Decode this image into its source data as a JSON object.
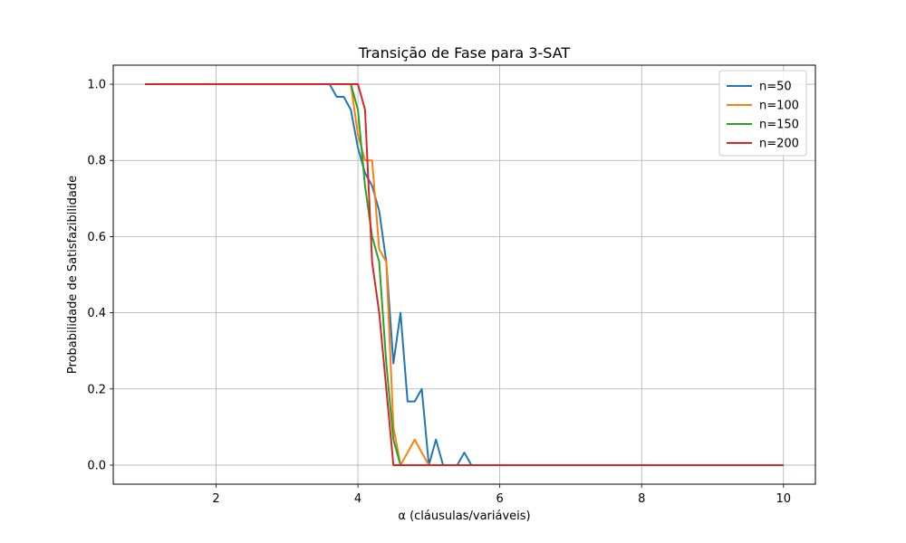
{
  "chart_data": {
    "type": "line",
    "title": "Transição de Fase para 3-SAT",
    "xlabel": "α (cláusulas/variáveis)",
    "ylabel": "Probabilidade de Satisfazibilidade",
    "xlim": [
      0.55,
      10.45
    ],
    "ylim": [
      -0.05,
      1.05
    ],
    "xticks": [
      2,
      4,
      6,
      8,
      10
    ],
    "yticks": [
      0.0,
      0.2,
      0.4,
      0.6,
      0.8,
      1.0
    ],
    "xtick_labels": [
      "2",
      "4",
      "6",
      "8",
      "10"
    ],
    "ytick_labels": [
      "0.0",
      "0.2",
      "0.4",
      "0.6",
      "0.8",
      "1.0"
    ],
    "grid": true,
    "legend_position": "top-right",
    "series": [
      {
        "name": "n=50",
        "color": "#1f77b4",
        "x": [
          1.0,
          3.6,
          3.7,
          3.8,
          3.9,
          4.0,
          4.1,
          4.2,
          4.3,
          4.4,
          4.5,
          4.6,
          4.7,
          4.8,
          4.9,
          5.0,
          5.1,
          5.2,
          5.3,
          5.4,
          5.5,
          5.6,
          10.0
        ],
        "values": [
          1.0,
          1.0,
          0.967,
          0.967,
          0.933,
          0.833,
          0.767,
          0.733,
          0.667,
          0.533,
          0.267,
          0.4,
          0.167,
          0.167,
          0.2,
          0.0,
          0.067,
          0.0,
          0.0,
          0.0,
          0.033,
          0.0,
          0.0
        ]
      },
      {
        "name": "n=100",
        "color": "#ff7f0e",
        "x": [
          1.0,
          3.9,
          4.0,
          4.1,
          4.2,
          4.3,
          4.4,
          4.5,
          4.6,
          4.7,
          4.8,
          4.9,
          5.0,
          10.0
        ],
        "values": [
          1.0,
          1.0,
          0.867,
          0.8,
          0.8,
          0.567,
          0.533,
          0.1,
          0.0,
          0.033,
          0.067,
          0.033,
          0.0,
          0.0
        ]
      },
      {
        "name": "n=150",
        "color": "#2ca02c",
        "x": [
          1.0,
          3.9,
          4.0,
          4.1,
          4.2,
          4.3,
          4.4,
          4.5,
          4.6,
          10.0
        ],
        "values": [
          1.0,
          1.0,
          0.933,
          0.733,
          0.6,
          0.533,
          0.267,
          0.067,
          0.0,
          0.0
        ]
      },
      {
        "name": "n=200",
        "color": "#d62728",
        "x": [
          1.0,
          4.0,
          4.1,
          4.2,
          4.3,
          4.4,
          4.5,
          10.0
        ],
        "values": [
          1.0,
          1.0,
          0.933,
          0.533,
          0.4,
          0.2,
          0.0,
          0.0
        ]
      }
    ]
  }
}
